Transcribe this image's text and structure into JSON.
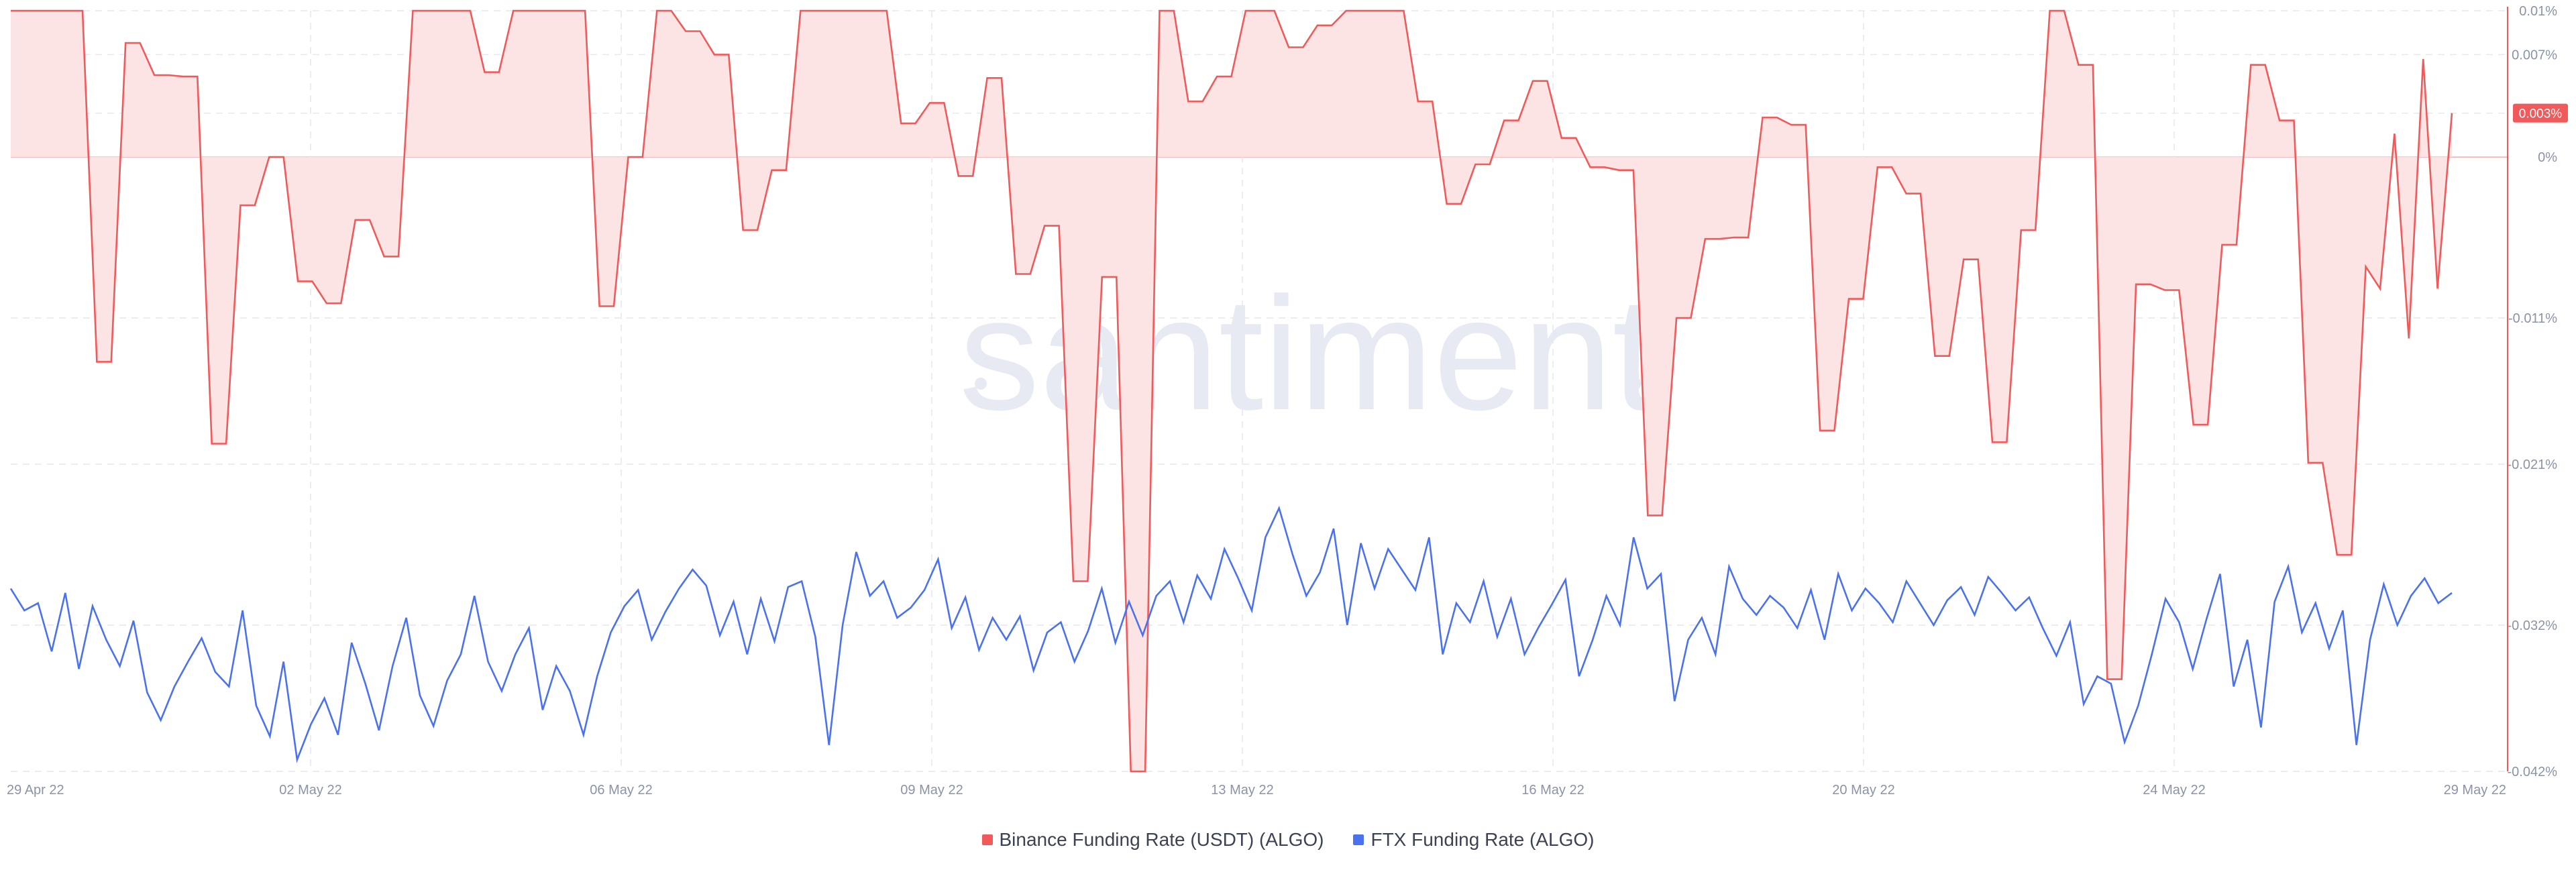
{
  "watermark": "santiment",
  "colors": {
    "binance": "#f05a5a",
    "binance_fill": "#fde4e4",
    "ftx": "#4b72ee",
    "grid": "#e4e8ef",
    "zero_line": "#f6a9a9",
    "axis": "#f05a5a",
    "tick_text": "#8a94a6"
  },
  "current_badge": "0.003%",
  "chart_data": {
    "type": "line",
    "x_ticks": [
      "29 Apr 22",
      "02 May 22",
      "06 May 22",
      "09 May 22",
      "13 May 22",
      "16 May 22",
      "20 May 22",
      "24 May 22",
      "29 May 22"
    ],
    "y_ticks": [
      "0.01%",
      "0.007%",
      "0.003%",
      "0%",
      "-0.011%",
      "-0.021%",
      "-0.032%",
      "-0.042%"
    ],
    "ylim": [
      -0.042,
      0.01
    ],
    "grid": true,
    "legend_position": "bottom",
    "series": [
      {
        "name": "Binance Funding Rate (USDT) (ALGO)",
        "color": "#f05a5a",
        "fill": true,
        "values": [
          0.01,
          0.01,
          0.01,
          0.01,
          0.01,
          0.01,
          -0.014,
          -0.014,
          0.0078,
          0.0078,
          0.0056,
          0.0056,
          0.0055,
          0.0055,
          -0.0196,
          -0.0196,
          -0.0033,
          -0.0033,
          0.0,
          0.0,
          -0.0085,
          -0.0085,
          -0.01,
          -0.01,
          -0.0043,
          -0.0043,
          -0.0068,
          -0.0068,
          0.01,
          0.01,
          0.01,
          0.01,
          0.01,
          0.0058,
          0.0058,
          0.01,
          0.01,
          0.01,
          0.01,
          0.01,
          0.01,
          -0.0102,
          -0.0102,
          0.0,
          0.0,
          0.01,
          0.01,
          0.0086,
          0.0086,
          0.007,
          0.007,
          -0.005,
          -0.005,
          -0.0009,
          -0.0009,
          0.01,
          0.01,
          0.01,
          0.01,
          0.01,
          0.01,
          0.01,
          0.0023,
          0.0023,
          0.0037,
          0.0037,
          -0.0013,
          -0.0013,
          0.0054,
          0.0054,
          -0.008,
          -0.008,
          -0.0047,
          -0.0047,
          -0.029,
          -0.029,
          -0.0082,
          -0.0082,
          -0.042,
          -0.042,
          0.01,
          0.01,
          0.0038,
          0.0038,
          0.0055,
          0.0055,
          0.01,
          0.01,
          0.01,
          0.0075,
          0.0075,
          0.009,
          0.009,
          0.01,
          0.01,
          0.01,
          0.01,
          0.01,
          0.0038,
          0.0038,
          -0.0032,
          -0.0032,
          -0.0005,
          -0.0005,
          0.0025,
          0.0025,
          0.0052,
          0.0052,
          0.0013,
          0.0013,
          -0.0007,
          -0.0007,
          -0.0009,
          -0.0009,
          -0.0245,
          -0.0245,
          -0.011,
          -0.011,
          -0.0056,
          -0.0056,
          -0.0055,
          -0.0055,
          0.0027,
          0.0027,
          0.0022,
          0.0022,
          -0.0187,
          -0.0187,
          -0.0097,
          -0.0097,
          -0.0007,
          -0.0007,
          -0.0025,
          -0.0025,
          -0.0136,
          -0.0136,
          -0.007,
          -0.007,
          -0.0195,
          -0.0195,
          -0.005,
          -0.005,
          0.01,
          0.01,
          0.0063,
          0.0063,
          -0.0357,
          -0.0357,
          -0.0087,
          -0.0087,
          -0.0091,
          -0.0091,
          -0.0183,
          -0.0183,
          -0.006,
          -0.006,
          0.0063,
          0.0063,
          0.0025,
          0.0025,
          -0.0209,
          -0.0209,
          -0.0272,
          -0.0272,
          -0.0075,
          -0.009,
          0.0016,
          -0.0124,
          0.0067,
          -0.009,
          0.003
        ]
      },
      {
        "name": "FTX Funding Rate (ALGO)",
        "color": "#4b72ee",
        "fill": false,
        "values": [
          -0.0295,
          -0.031,
          -0.0305,
          -0.0338,
          -0.0298,
          -0.035,
          -0.0307,
          -0.033,
          -0.0348,
          -0.0317,
          -0.0366,
          -0.0385,
          -0.0362,
          -0.0345,
          -0.0329,
          -0.0352,
          -0.0362,
          -0.031,
          -0.0375,
          -0.0396,
          -0.0345,
          -0.0412,
          -0.0388,
          -0.037,
          -0.0395,
          -0.0332,
          -0.036,
          -0.0392,
          -0.0348,
          -0.0315,
          -0.0368,
          -0.0389,
          -0.0358,
          -0.034,
          -0.03,
          -0.0345,
          -0.0365,
          -0.034,
          -0.0322,
          -0.0378,
          -0.0348,
          -0.0365,
          -0.0395,
          -0.0355,
          -0.0325,
          -0.0307,
          -0.0296,
          -0.033,
          -0.0311,
          -0.0295,
          -0.0282,
          -0.0293,
          -0.0327,
          -0.0304,
          -0.034,
          -0.0302,
          -0.0331,
          -0.0294,
          -0.029,
          -0.0328,
          -0.0402,
          -0.032,
          -0.027,
          -0.03,
          -0.029,
          -0.0315,
          -0.0308,
          -0.0296,
          -0.0275,
          -0.0322,
          -0.0301,
          -0.0337,
          -0.0315,
          -0.033,
          -0.0314,
          -0.0351,
          -0.0325,
          -0.0318,
          -0.0345,
          -0.0324,
          -0.0295,
          -0.0332,
          -0.0304,
          -0.0327,
          -0.03,
          -0.029,
          -0.0318,
          -0.0286,
          -0.0302,
          -0.0268,
          -0.0288,
          -0.031,
          -0.026,
          -0.024,
          -0.0272,
          -0.03,
          -0.0284,
          -0.0254,
          -0.032,
          -0.0264,
          -0.0295,
          -0.0268,
          -0.0282,
          -0.0296,
          -0.026,
          -0.034,
          -0.0305,
          -0.0318,
          -0.029,
          -0.0328,
          -0.0302,
          -0.034,
          -0.0322,
          -0.0306,
          -0.0289,
          -0.0355,
          -0.033,
          -0.03,
          -0.032,
          -0.026,
          -0.0295,
          -0.0285,
          -0.0372,
          -0.033,
          -0.0315,
          -0.034,
          -0.028,
          -0.0302,
          -0.0313,
          -0.03,
          -0.0308,
          -0.0322,
          -0.0296,
          -0.033,
          -0.0285,
          -0.031,
          -0.0295,
          -0.0305,
          -0.0318,
          -0.029,
          -0.0305,
          -0.032,
          -0.0303,
          -0.0294,
          -0.0313,
          -0.0287,
          -0.0298,
          -0.031,
          -0.0301,
          -0.0322,
          -0.0341,
          -0.0318,
          -0.0374,
          -0.0355,
          -0.036,
          -0.04,
          -0.0375,
          -0.034,
          -0.0302,
          -0.0318,
          -0.035,
          -0.0316,
          -0.0285,
          -0.0362,
          -0.033,
          -0.039,
          -0.0304,
          -0.028,
          -0.0325,
          -0.0305,
          -0.0336,
          -0.031,
          -0.0402,
          -0.033,
          -0.0292,
          -0.032,
          -0.03,
          -0.0288,
          -0.0305,
          -0.0298
        ]
      }
    ]
  }
}
